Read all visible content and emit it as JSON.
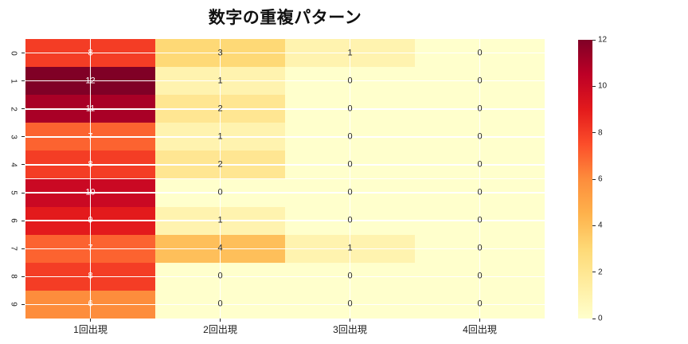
{
  "chart_data": {
    "type": "heatmap",
    "title": "数字の重複パターン",
    "x_tick_labels": [
      "1回出現",
      "2回出現",
      "3回出現",
      "4回出現"
    ],
    "y_tick_labels": [
      "0",
      "1",
      "2",
      "3",
      "4",
      "5",
      "6",
      "7",
      "8",
      "9"
    ],
    "values": [
      [
        8,
        3,
        1,
        0
      ],
      [
        12,
        1,
        0,
        0
      ],
      [
        11,
        2,
        0,
        0
      ],
      [
        7,
        1,
        0,
        0
      ],
      [
        8,
        2,
        0,
        0
      ],
      [
        10,
        0,
        0,
        0
      ],
      [
        9,
        1,
        0,
        0
      ],
      [
        7,
        4,
        1,
        0
      ],
      [
        8,
        0,
        0,
        0
      ],
      [
        6,
        0,
        0,
        0
      ]
    ],
    "vmin": 0,
    "vmax": 12,
    "colorbar_ticks": [
      0,
      2,
      4,
      6,
      8,
      10,
      12
    ],
    "colormap": {
      "name": "YlOrRd",
      "stops": [
        "#ffffcc",
        "#ffeda0",
        "#fed976",
        "#feb24c",
        "#fd8d3c",
        "#fc4e2a",
        "#e31a1c",
        "#bd0026",
        "#800026"
      ]
    },
    "style": {
      "background": "#ffffff",
      "grid_color": "#ffffff",
      "tick_color": "#262626",
      "annot_dark": "#262626",
      "annot_light": "#ffffff"
    },
    "legend_position": "right-colorbar",
    "grid": "on"
  }
}
